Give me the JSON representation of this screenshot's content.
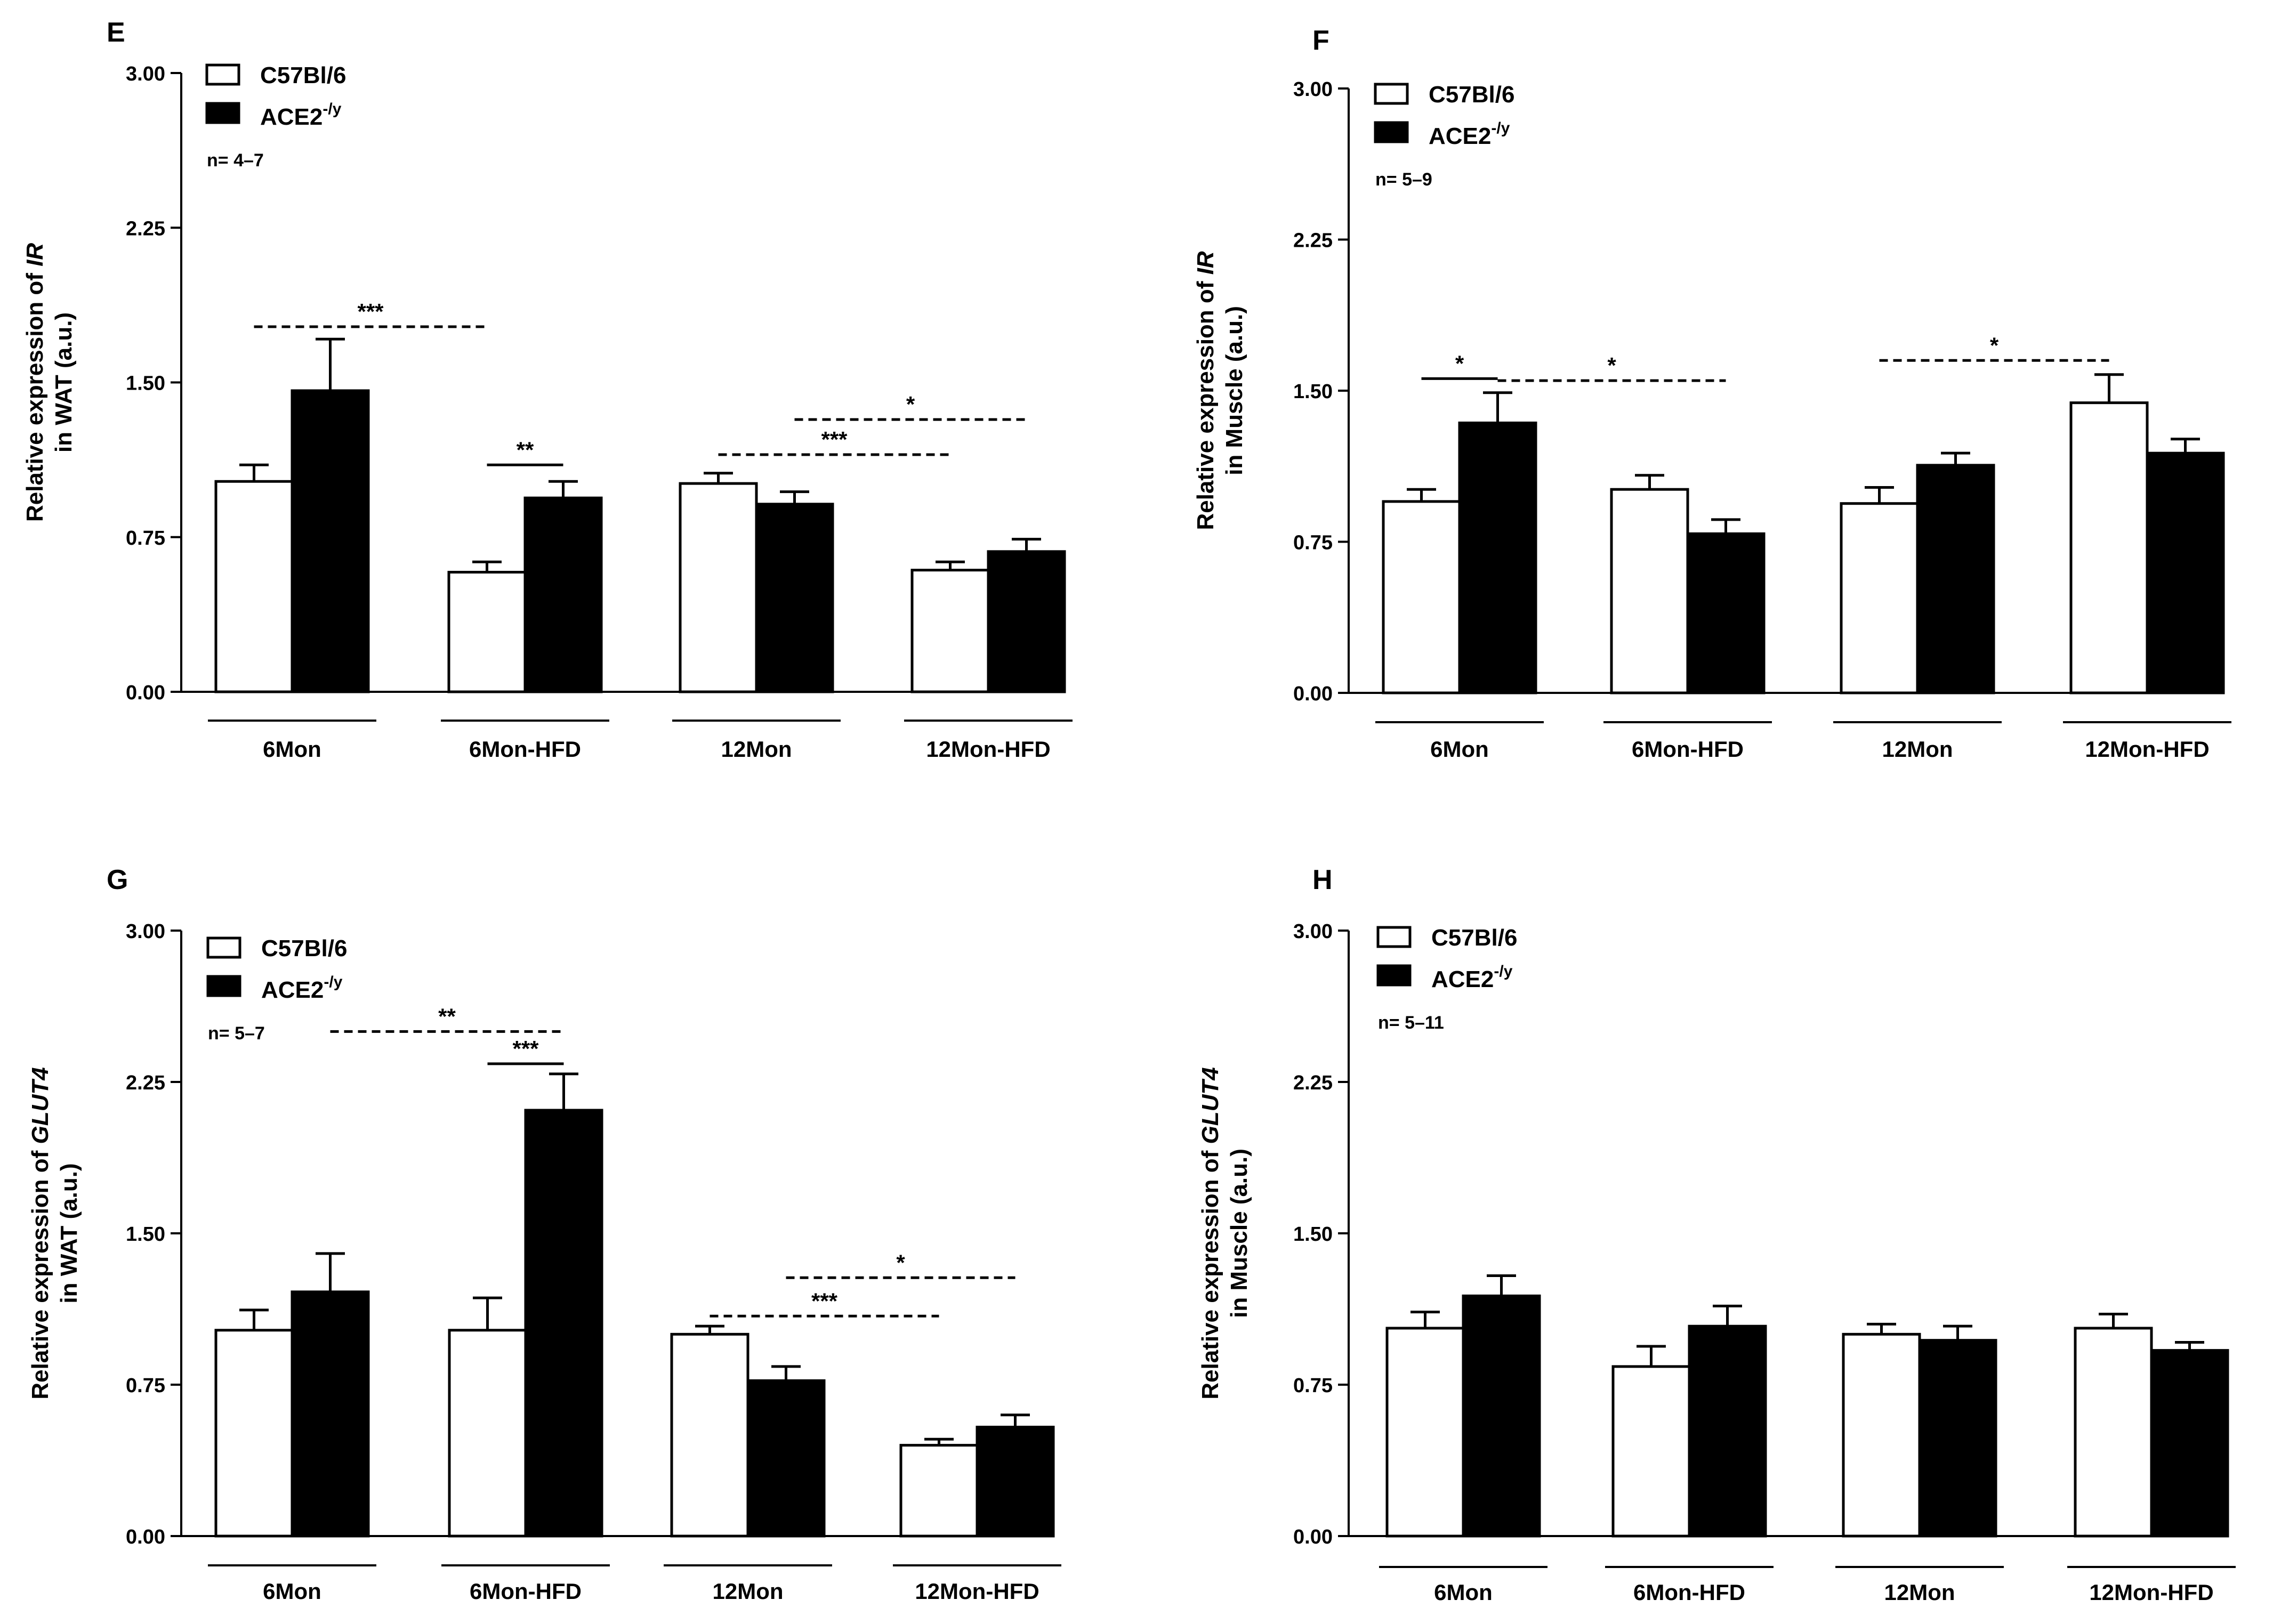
{
  "figure": {
    "panels": [
      "E",
      "F",
      "G",
      "H"
    ]
  },
  "colors": {
    "wt_fill": "#ffffff",
    "ko_fill": "#000000",
    "stroke": "#000000",
    "background": "#ffffff"
  },
  "chart_data": [
    {
      "type": "bar",
      "panel_label": "E",
      "title": "",
      "ylabel_line1_prefix": "Relative expression of ",
      "ylabel_gene": "IR",
      "ylabel_line2": "in WAT (a.u.)",
      "ylim": [
        0,
        3
      ],
      "yticks": [
        "0.00",
        "0.75",
        "1.50",
        "2.25",
        "3.00"
      ],
      "categories": [
        "6Mon",
        "6Mon-HFD",
        "12Mon",
        "12Mon-HFD"
      ],
      "legend": {
        "wt": "C57Bl/6",
        "ko_base": "ACE2",
        "ko_sup": "-/y",
        "n": "n= 4–7",
        "position": "top-left"
      },
      "series": [
        {
          "name": "C57Bl/6",
          "values": [
            1.02,
            0.58,
            1.01,
            0.59
          ],
          "errors": [
            0.08,
            0.05,
            0.05,
            0.04
          ]
        },
        {
          "name": "ACE2-/y",
          "values": [
            1.46,
            0.94,
            0.91,
            0.68
          ],
          "errors": [
            0.25,
            0.08,
            0.06,
            0.06
          ]
        }
      ],
      "annotations": [
        {
          "label": "***",
          "style": "dashed",
          "from": [
            0,
            0
          ],
          "to": [
            1,
            0
          ],
          "y": 1.77
        },
        {
          "label": "**",
          "style": "solid",
          "from": [
            1,
            0
          ],
          "to": [
            1,
            1
          ],
          "y": 1.1
        },
        {
          "label": "***",
          "style": "dashed",
          "from": [
            2,
            0
          ],
          "to": [
            3,
            0
          ],
          "y": 1.15
        },
        {
          "label": "*",
          "style": "dashed",
          "from": [
            2,
            1
          ],
          "to": [
            3,
            1
          ],
          "y": 1.32
        }
      ]
    },
    {
      "type": "bar",
      "panel_label": "F",
      "title": "",
      "ylabel_line1_prefix": "Relative expression of ",
      "ylabel_gene": "IR",
      "ylabel_line2": "in Muscle (a.u.)",
      "ylim": [
        0,
        3
      ],
      "yticks": [
        "0.00",
        "0.75",
        "1.50",
        "2.25",
        "3.00"
      ],
      "categories": [
        "6Mon",
        "6Mon-HFD",
        "12Mon",
        "12Mon-HFD"
      ],
      "legend": {
        "wt": "C57Bl/6",
        "ko_base": "ACE2",
        "ko_sup": "-/y",
        "n": "n= 5–9",
        "position": "top-left"
      },
      "series": [
        {
          "name": "C57Bl/6",
          "values": [
            0.95,
            1.01,
            0.94,
            1.44
          ],
          "errors": [
            0.06,
            0.07,
            0.08,
            0.14
          ]
        },
        {
          "name": "ACE2-/y",
          "values": [
            1.34,
            0.79,
            1.13,
            1.19
          ],
          "errors": [
            0.15,
            0.07,
            0.06,
            0.07
          ]
        }
      ],
      "annotations": [
        {
          "label": "*",
          "style": "solid",
          "from": [
            0,
            0
          ],
          "to": [
            0,
            1
          ],
          "y": 1.56
        },
        {
          "label": "*",
          "style": "dashed",
          "from": [
            0,
            1
          ],
          "to": [
            1,
            1
          ],
          "y": 1.55
        },
        {
          "label": "*",
          "style": "dashed",
          "from": [
            2,
            0
          ],
          "to": [
            3,
            0
          ],
          "y": 1.65
        }
      ]
    },
    {
      "type": "bar",
      "panel_label": "G",
      "title": "",
      "ylabel_line1_prefix": "Relative expression of  ",
      "ylabel_gene": "GLUT4",
      "ylabel_line2": "in WAT (a.u.)",
      "ylim": [
        0,
        3
      ],
      "yticks": [
        "0.00",
        "0.75",
        "1.50",
        "2.25",
        "3.00"
      ],
      "categories": [
        "6Mon",
        "6Mon-HFD",
        "12Mon",
        "12Mon-HFD"
      ],
      "legend": {
        "wt": "C57Bl/6",
        "ko_base": "ACE2",
        "ko_sup": "-/y",
        "n": "n= 5–7",
        "position": "top-left"
      },
      "series": [
        {
          "name": "C57Bl/6",
          "values": [
            1.02,
            1.02,
            1.0,
            0.45
          ],
          "errors": [
            0.1,
            0.16,
            0.04,
            0.03
          ]
        },
        {
          "name": "ACE2-/y",
          "values": [
            1.21,
            2.11,
            0.77,
            0.54
          ],
          "errors": [
            0.19,
            0.18,
            0.07,
            0.06
          ]
        }
      ],
      "annotations": [
        {
          "label": "**",
          "style": "dashed",
          "from": [
            0,
            1
          ],
          "to": [
            1,
            1
          ],
          "y": 2.5
        },
        {
          "label": "***",
          "style": "solid",
          "from": [
            1,
            0
          ],
          "to": [
            1,
            1
          ],
          "y": 2.34
        },
        {
          "label": "***",
          "style": "dashed",
          "from": [
            2,
            0
          ],
          "to": [
            3,
            0
          ],
          "y": 1.09
        },
        {
          "label": "*",
          "style": "dashed",
          "from": [
            2,
            1
          ],
          "to": [
            3,
            1
          ],
          "y": 1.28
        }
      ]
    },
    {
      "type": "bar",
      "panel_label": "H",
      "title": "",
      "ylabel_line1_prefix": "Relative expression of  ",
      "ylabel_gene": "GLUT4",
      "ylabel_line2": "in Muscle (a.u.)",
      "ylim": [
        0,
        3
      ],
      "yticks": [
        "0.00",
        "0.75",
        "1.50",
        "2.25",
        "3.00"
      ],
      "categories": [
        "6Mon",
        "6Mon-HFD",
        "12Mon",
        "12Mon-HFD"
      ],
      "legend": {
        "wt": "C57Bl/6",
        "ko_base": "ACE2",
        "ko_sup": "-/y",
        "n": "n= 5–11",
        "position": "top-left"
      },
      "series": [
        {
          "name": "C57Bl/6",
          "values": [
            1.03,
            0.84,
            1.0,
            1.03
          ],
          "errors": [
            0.08,
            0.1,
            0.05,
            0.07
          ]
        },
        {
          "name": "ACE2-/y",
          "values": [
            1.19,
            1.04,
            0.97,
            0.92
          ],
          "errors": [
            0.1,
            0.1,
            0.07,
            0.04
          ]
        }
      ],
      "annotations": []
    }
  ]
}
